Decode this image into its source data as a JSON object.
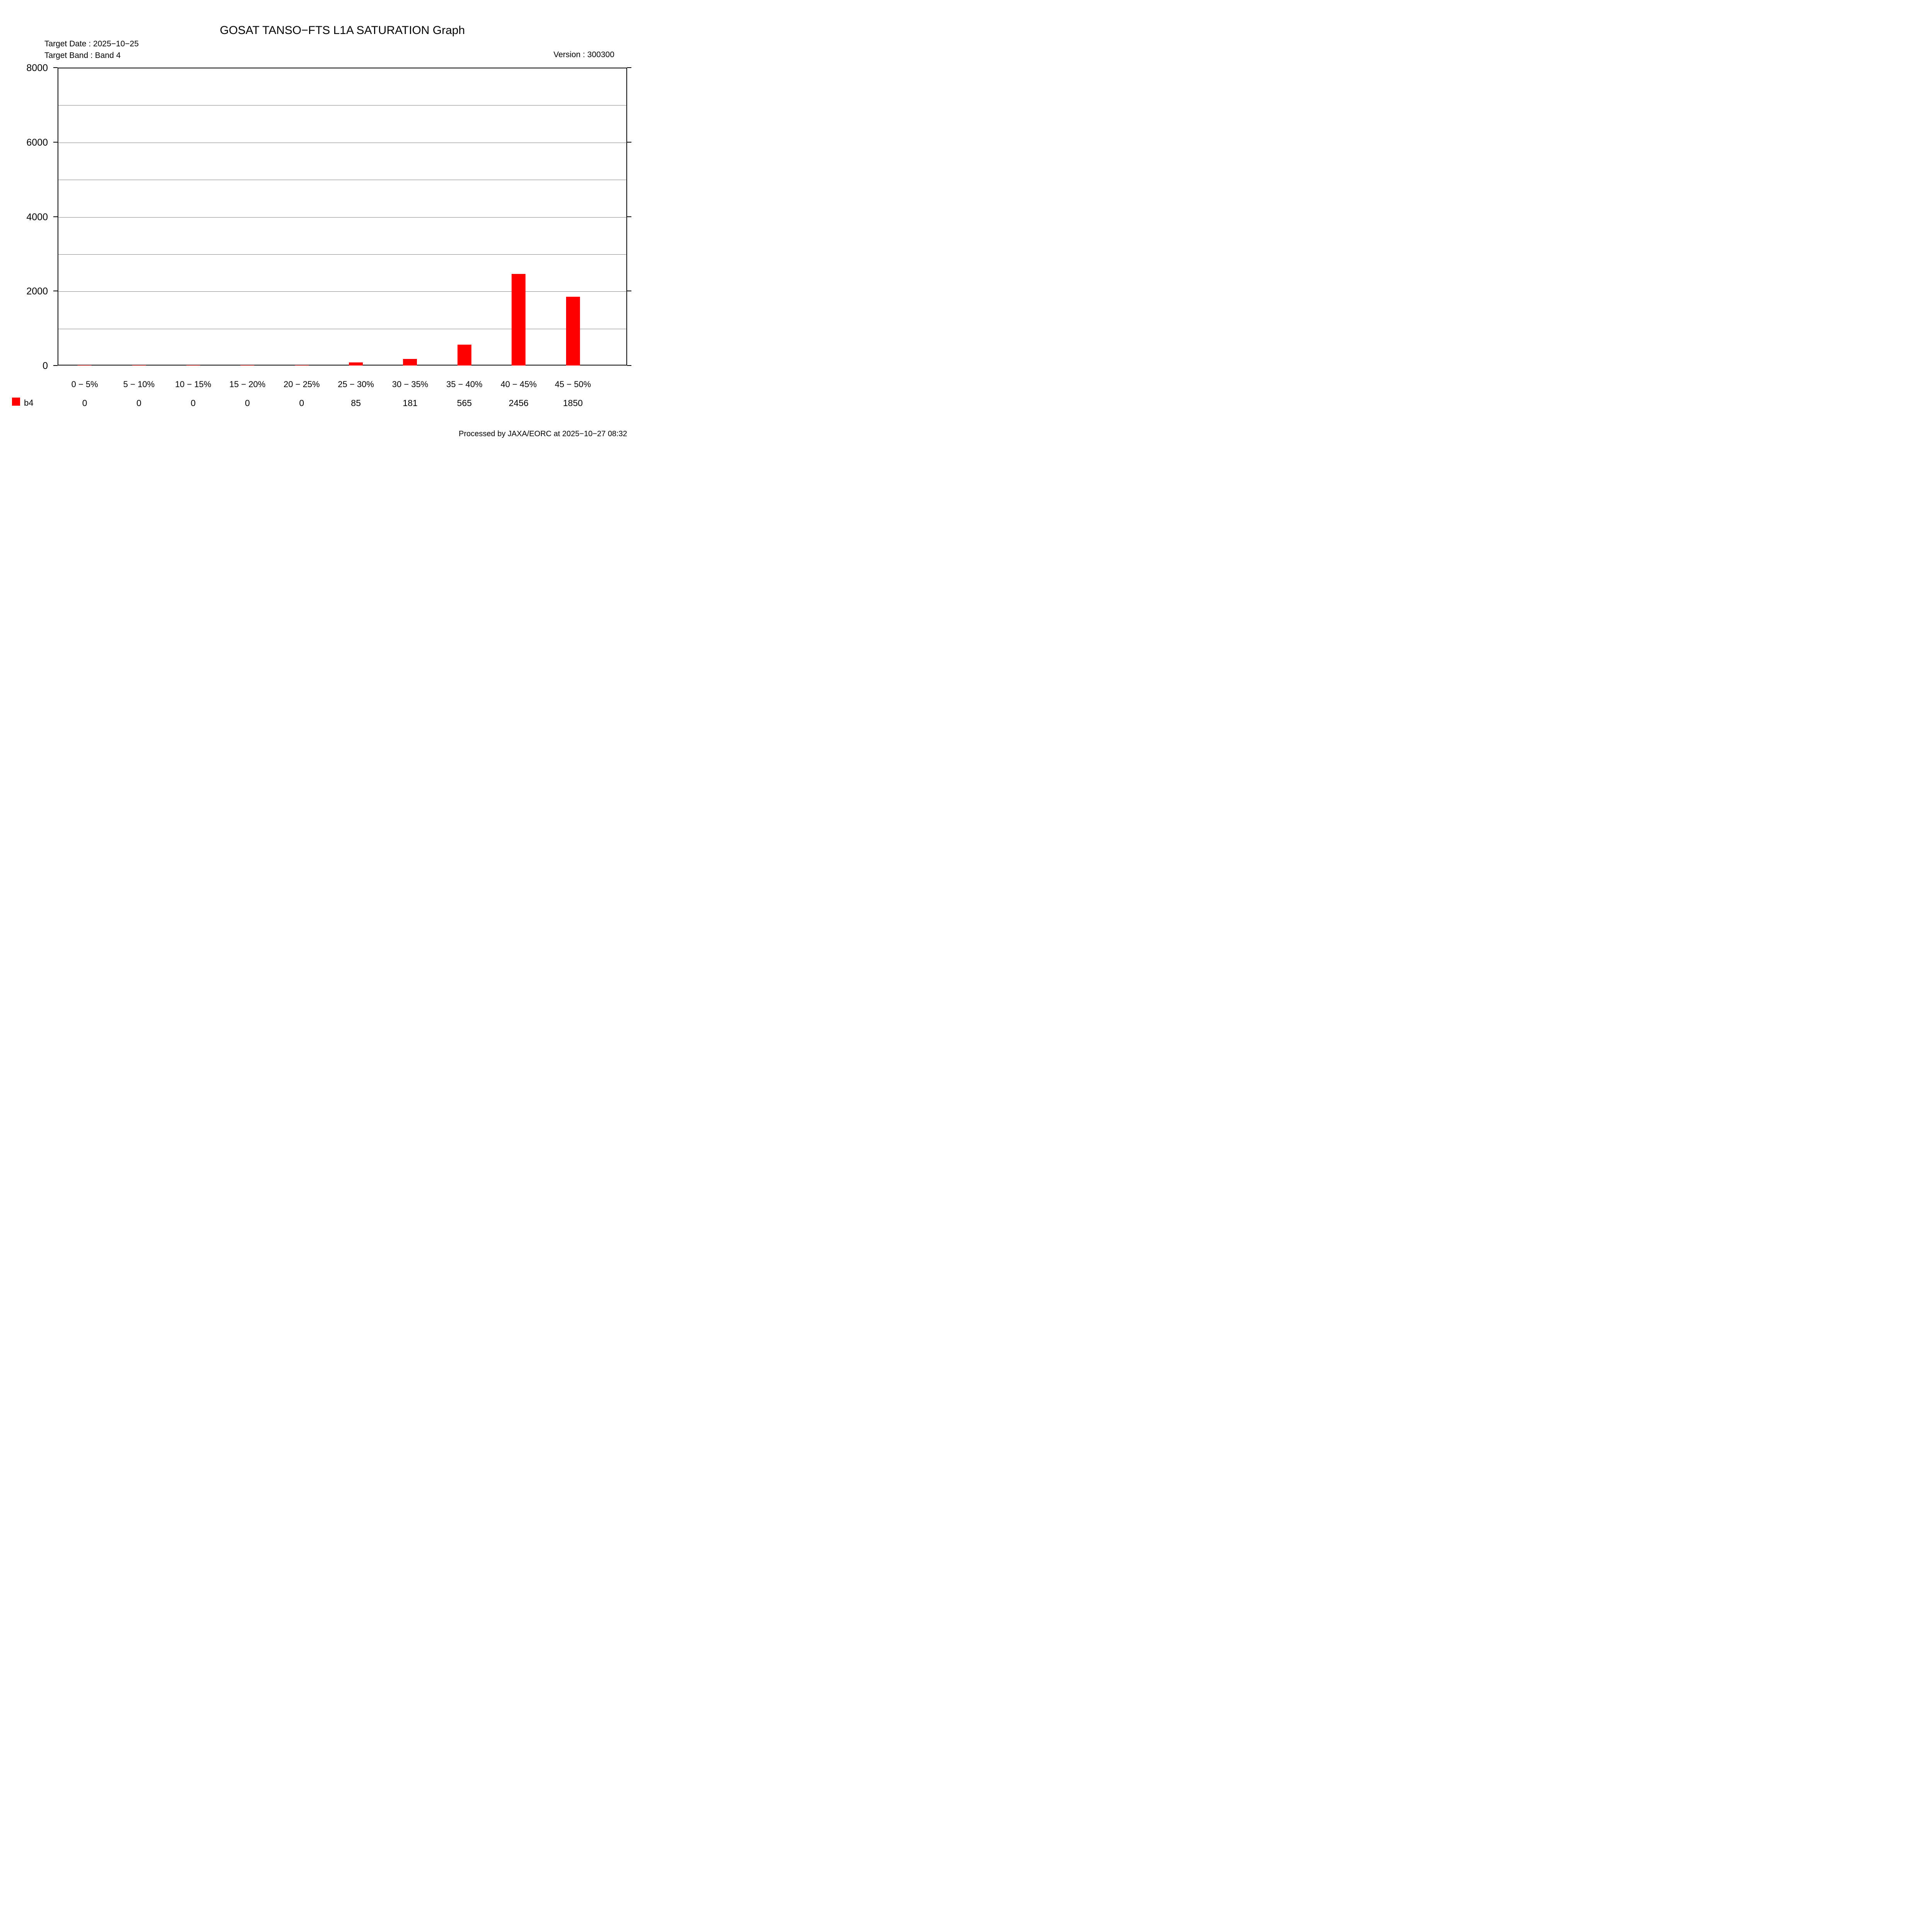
{
  "title": "GOSAT TANSO−FTS L1A SATURATION Graph",
  "header": {
    "target_date_label": "Target Date : 2025−10−25",
    "target_band_label": "Target Band : Band 4",
    "version_label": "Version : 300300"
  },
  "footer": {
    "processed_label": "Processed by JAXA/EORC at 2025−10−27 08:32"
  },
  "legend": {
    "label": "b4",
    "swatch_color": "#ff0000"
  },
  "chart_data": {
    "type": "bar",
    "title": "GOSAT TANSO−FTS L1A SATURATION Graph",
    "categories": [
      "0 − 5%",
      "5 − 10%",
      "10 − 15%",
      "15 − 20%",
      "20 − 25%",
      "25 − 30%",
      "30 − 35%",
      "35 − 40%",
      "40 − 45%",
      "45 − 50%"
    ],
    "series": [
      {
        "name": "b4",
        "values": [
          0,
          0,
          0,
          0,
          0,
          85,
          181,
          565,
          2456,
          1850
        ]
      }
    ],
    "xlabel": "",
    "ylabel": "",
    "ylim": [
      0,
      8000
    ],
    "ytick_interval": 2000,
    "ytick_labels": [
      "0",
      "2000",
      "4000",
      "6000",
      "8000"
    ],
    "gridline_interval": 1000,
    "grid_on": true,
    "grid_color": "#808080",
    "bar_color": "#ff0000",
    "axis_color": "#000000",
    "legend_position": "bottom-left"
  }
}
